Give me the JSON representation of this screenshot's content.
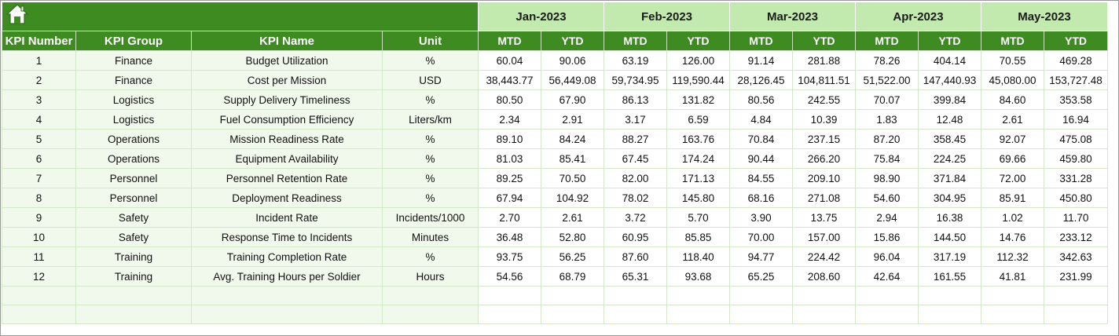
{
  "headers": {
    "kpi_number": "KPI Number",
    "kpi_group": "KPI Group",
    "kpi_name": "KPI Name",
    "unit": "Unit",
    "mtd": "MTD",
    "ytd": "YTD"
  },
  "months": [
    "Jan-2023",
    "Feb-2023",
    "Mar-2023",
    "Apr-2023",
    "May-2023"
  ],
  "rows": [
    {
      "num": "1",
      "group": "Finance",
      "name": "Budget Utilization",
      "unit": "%",
      "values": [
        "60.04",
        "90.06",
        "63.19",
        "126.00",
        "91.14",
        "281.88",
        "78.26",
        "404.14",
        "70.55",
        "469.28"
      ]
    },
    {
      "num": "2",
      "group": "Finance",
      "name": "Cost per Mission",
      "unit": "USD",
      "values": [
        "38,443.77",
        "56,449.08",
        "59,734.95",
        "119,590.44",
        "28,126.45",
        "104,811.51",
        "51,522.00",
        "147,440.93",
        "45,080.00",
        "153,727.48"
      ]
    },
    {
      "num": "3",
      "group": "Logistics",
      "name": "Supply Delivery Timeliness",
      "unit": "%",
      "values": [
        "80.50",
        "67.90",
        "86.13",
        "131.82",
        "80.56",
        "242.55",
        "70.07",
        "399.84",
        "84.60",
        "353.58"
      ]
    },
    {
      "num": "4",
      "group": "Logistics",
      "name": "Fuel Consumption Efficiency",
      "unit": "Liters/km",
      "values": [
        "2.34",
        "2.91",
        "3.17",
        "6.59",
        "4.84",
        "10.39",
        "1.83",
        "12.48",
        "2.61",
        "16.94"
      ]
    },
    {
      "num": "5",
      "group": "Operations",
      "name": "Mission Readiness Rate",
      "unit": "%",
      "values": [
        "89.10",
        "84.24",
        "88.27",
        "163.76",
        "70.84",
        "237.15",
        "87.20",
        "358.45",
        "92.07",
        "475.08"
      ]
    },
    {
      "num": "6",
      "group": "Operations",
      "name": "Equipment Availability",
      "unit": "%",
      "values": [
        "81.03",
        "85.41",
        "67.45",
        "174.24",
        "90.44",
        "266.20",
        "75.84",
        "224.25",
        "69.66",
        "459.80"
      ]
    },
    {
      "num": "7",
      "group": "Personnel",
      "name": "Personnel Retention Rate",
      "unit": "%",
      "values": [
        "89.25",
        "70.50",
        "82.00",
        "171.13",
        "84.55",
        "209.10",
        "98.90",
        "371.84",
        "72.00",
        "331.28"
      ]
    },
    {
      "num": "8",
      "group": "Personnel",
      "name": "Deployment Readiness",
      "unit": "%",
      "values": [
        "67.94",
        "104.92",
        "78.02",
        "145.80",
        "68.16",
        "271.08",
        "54.60",
        "304.95",
        "85.91",
        "450.80"
      ]
    },
    {
      "num": "9",
      "group": "Safety",
      "name": "Incident Rate",
      "unit": "Incidents/1000",
      "values": [
        "2.70",
        "2.61",
        "3.72",
        "5.70",
        "3.90",
        "13.75",
        "2.94",
        "16.38",
        "1.02",
        "11.70"
      ]
    },
    {
      "num": "10",
      "group": "Safety",
      "name": "Response Time to Incidents",
      "unit": "Minutes",
      "values": [
        "36.48",
        "52.80",
        "60.95",
        "85.85",
        "70.00",
        "157.00",
        "15.86",
        "144.50",
        "14.76",
        "233.12"
      ]
    },
    {
      "num": "11",
      "group": "Training",
      "name": "Training Completion Rate",
      "unit": "%",
      "values": [
        "93.75",
        "56.25",
        "87.60",
        "118.40",
        "94.77",
        "224.42",
        "96.04",
        "317.19",
        "112.32",
        "342.63"
      ]
    },
    {
      "num": "12",
      "group": "Training",
      "name": "Avg. Training Hours per Soldier",
      "unit": "Hours",
      "values": [
        "54.56",
        "68.79",
        "65.31",
        "93.68",
        "65.25",
        "208.60",
        "42.64",
        "161.55",
        "41.81",
        "231.99"
      ]
    }
  ],
  "empty_rows": 2,
  "icons": {
    "home": "home-icon"
  },
  "colors": {
    "header_green": "#3d8b21",
    "month_green": "#c2e9ae",
    "row_tint": "#f1f8ec",
    "grid": "#d3e8c8"
  }
}
